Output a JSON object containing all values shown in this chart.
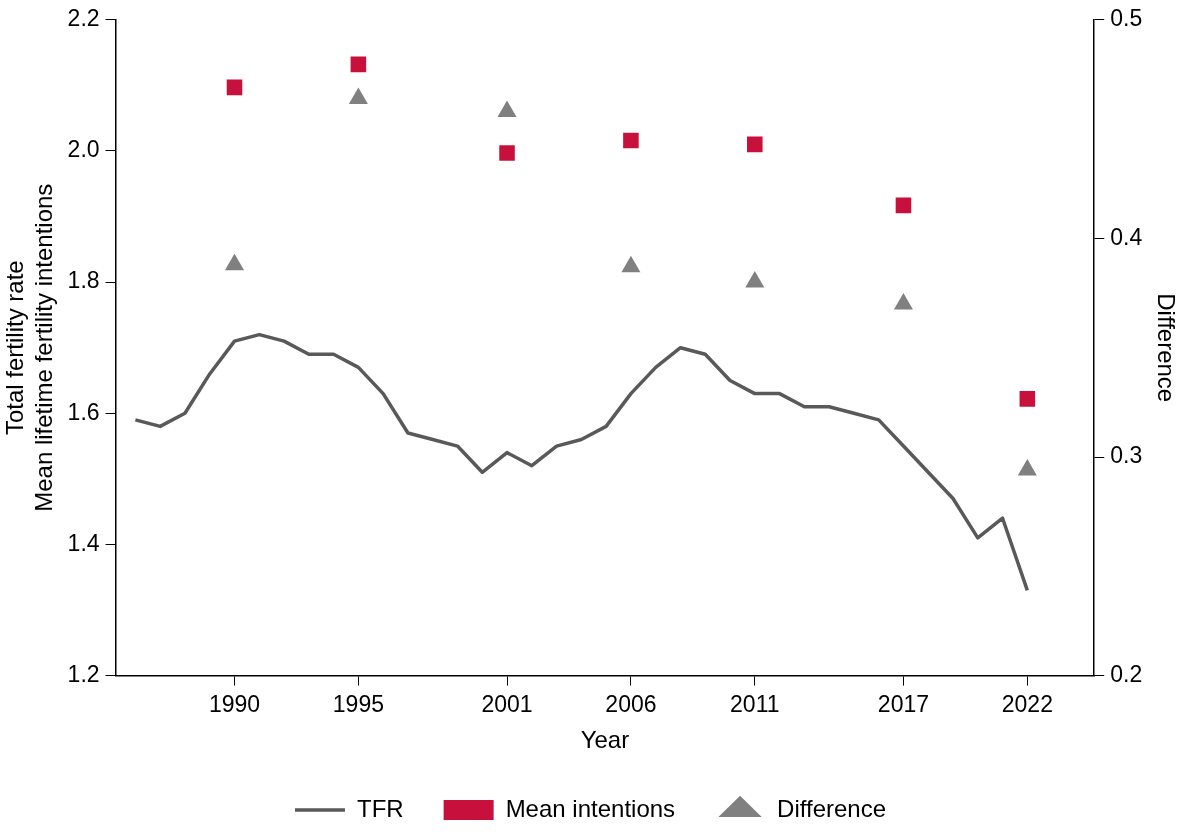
{
  "chart_data": {
    "type": "line",
    "xlabel": "Year",
    "ylabel": "Total fertility rate\nMean lifetime fertility intentions",
    "y2label": "Difference",
    "xlim": [
      1985.2,
      2024.7
    ],
    "xticks": [
      1990,
      1995,
      2001,
      2006,
      2011,
      2017,
      2022
    ],
    "ylim": [
      1.2,
      2.2
    ],
    "yticks": [
      {
        "value": 1.2,
        "label": "1.2"
      },
      {
        "value": 1.4,
        "label": "1.4"
      },
      {
        "value": 1.6,
        "label": "1.6"
      },
      {
        "value": 1.8,
        "label": "1.8"
      },
      {
        "value": 2,
        "label": "2.0"
      },
      {
        "value": 2.2,
        "label": "2.2"
      }
    ],
    "y2lim": [
      0.2,
      0.5
    ],
    "y2ticks": [
      {
        "value": 0.2,
        "label": "0.2"
      },
      {
        "value": 0.3,
        "label": "0.3"
      },
      {
        "value": 0.4,
        "label": "0.4"
      },
      {
        "value": 0.5,
        "label": "0.5"
      }
    ],
    "grid": false,
    "legend": "bottom",
    "series": [
      {
        "name": "TFR",
        "type": "line",
        "color": "#595959",
        "marker": "none",
        "line_style": "solid",
        "x": [
          1986,
          1987,
          1988,
          1989,
          1990,
          1991,
          1992,
          1993,
          1994,
          1995,
          1996,
          1997,
          1998,
          1999,
          2000,
          2001,
          2002,
          2003,
          2004,
          2005,
          2006,
          2007,
          2008,
          2009,
          2010,
          2011,
          2012,
          2013,
          2014,
          2015,
          2016,
          2017,
          2018,
          2019,
          2020,
          2021,
          2022
        ],
        "values": [
          1.59,
          1.58,
          1.6,
          1.66,
          1.71,
          1.72,
          1.71,
          1.69,
          1.69,
          1.67,
          1.63,
          1.57,
          1.56,
          1.55,
          1.51,
          1.54,
          1.52,
          1.55,
          1.56,
          1.58,
          1.63,
          1.67,
          1.7,
          1.69,
          1.65,
          1.63,
          1.63,
          1.61,
          1.61,
          1.6,
          1.59,
          1.55,
          1.51,
          1.47,
          1.41,
          1.44,
          1.33
        ]
      },
      {
        "name": "Mean intentions",
        "type": "scatter",
        "color": "#c8103c",
        "marker": "square",
        "x": [
          1990,
          1995,
          2001,
          2006,
          2011,
          2017,
          2022
        ],
        "values": [
          2.097,
          2.132,
          1.997,
          2.016,
          2.01,
          1.917,
          1.622
        ]
      },
      {
        "name": "Difference",
        "type": "scatter",
        "axis": "y2",
        "color": "#808080",
        "marker": "triangle",
        "x": [
          1990,
          1995,
          2001,
          2006,
          2011,
          2017,
          2022
        ],
        "values": [
          0.388,
          0.464,
          0.458,
          0.387,
          0.38,
          0.37,
          0.294
        ]
      }
    ]
  }
}
